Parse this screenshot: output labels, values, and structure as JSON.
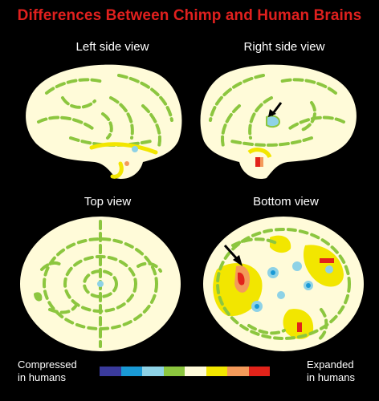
{
  "title": "Differences Between Chimp and Human Brains",
  "views": {
    "left_side": "Left side view",
    "right_side": "Right side view",
    "top": "Top view",
    "bottom": "Bottom view"
  },
  "legend": {
    "compressed_line1": "Compressed",
    "compressed_line2": "in humans",
    "expanded_line1": "Expanded",
    "expanded_line2": "in humans",
    "scale_colors": [
      "#3a3a9c",
      "#1a9ad6",
      "#8ed2e6",
      "#8cc63f",
      "#fffbd9",
      "#f2e600",
      "#f49a5a",
      "#e2231a"
    ]
  },
  "colors": {
    "title": "#e0201e",
    "brain_base": "#fffbd9",
    "green": "#8cc63f",
    "yellow": "#f2e600",
    "cyan": "#8ed2e6",
    "blue": "#1a9ad6",
    "red": "#e2231a",
    "orange": "#f49a5a"
  }
}
